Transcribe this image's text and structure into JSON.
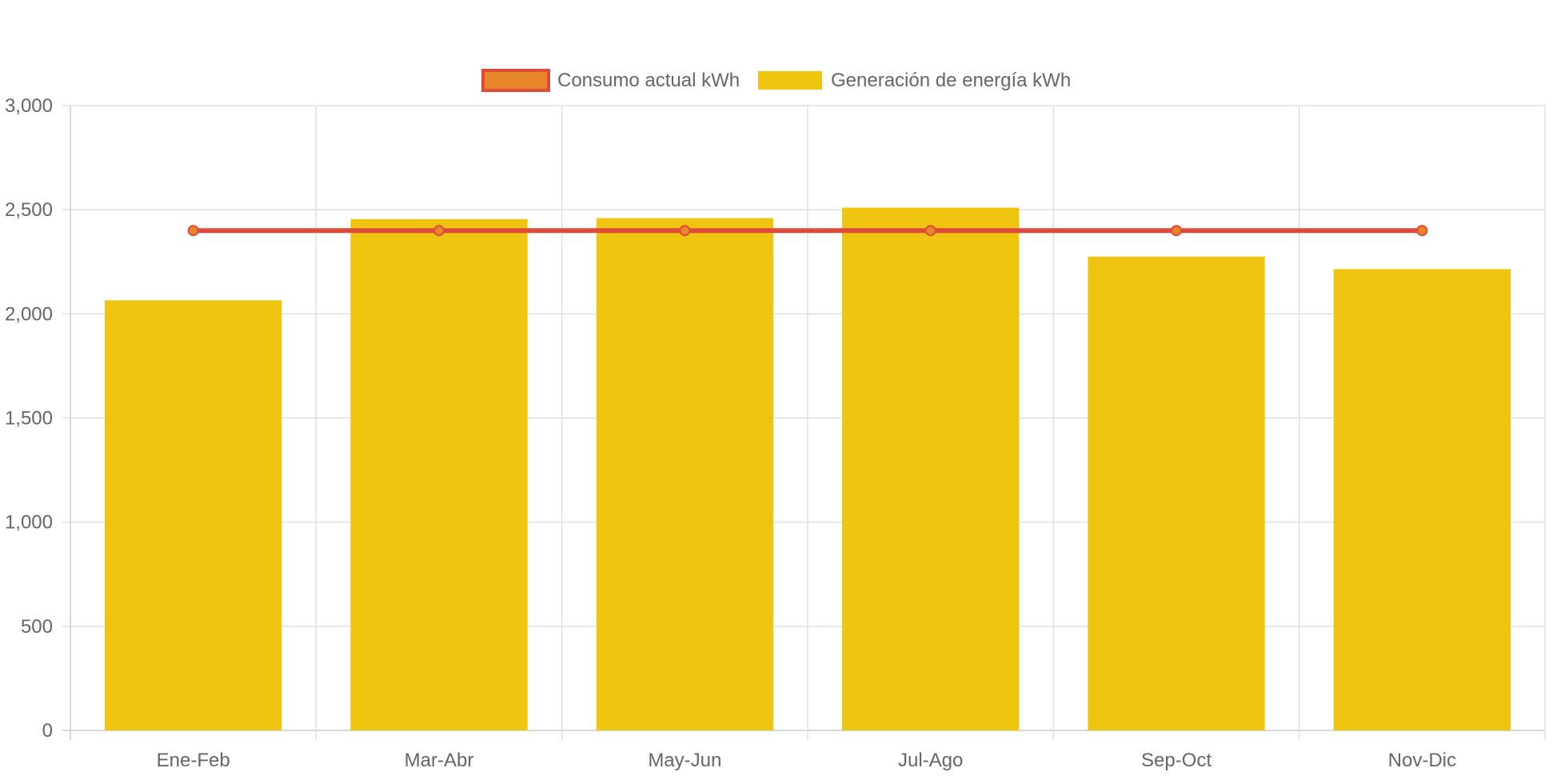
{
  "chart_data": {
    "type": "bar",
    "categories": [
      "Ene-Feb",
      "Mar-Abr",
      "May-Jun",
      "Jul-Ago",
      "Sep-Oct",
      "Nov-Dic"
    ],
    "series": [
      {
        "name": "Consumo actual kWh",
        "render": "line",
        "values": [
          2400,
          2400,
          2400,
          2400,
          2400,
          2400
        ],
        "color": "#e04a3a",
        "point_color": "#e8862c"
      },
      {
        "name": "Generación de energía kWh",
        "render": "bar",
        "values": [
          2065,
          2455,
          2460,
          2510,
          2275,
          2215
        ],
        "color": "#f0c510"
      }
    ],
    "yticks": [
      0,
      500,
      1000,
      1500,
      2000,
      2500,
      3000
    ],
    "ytick_labels": [
      "0",
      "500",
      "1,000",
      "1,500",
      "2,000",
      "2,500",
      "3,000"
    ],
    "ylim": [
      0,
      3000
    ],
    "grid": true,
    "legend": "top-center",
    "title": "",
    "xlabel": "",
    "ylabel": ""
  }
}
